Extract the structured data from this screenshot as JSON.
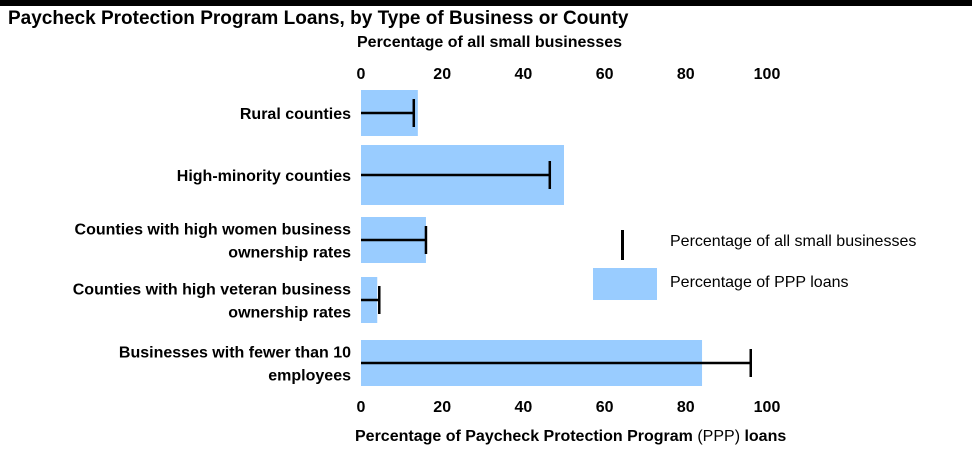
{
  "chart_data": {
    "type": "bar",
    "orientation": "horizontal",
    "title": "Paycheck Protection Program Loans, by Type of Business or County",
    "top_axis_label": "Percentage of all small businesses",
    "bottom_axis_label": {
      "part1": "Percentage of Paycheck Protection Program ",
      "part2": "(PPP)",
      "part3": " loans"
    },
    "categories": [
      [
        "Rural counties"
      ],
      [
        "High-minority counties"
      ],
      [
        "Counties with high women business",
        "ownership rates"
      ],
      [
        "Counties with high veteran business",
        "ownership rates"
      ],
      [
        "Businesses with fewer than 10",
        "employees"
      ]
    ],
    "series": [
      {
        "name": "Percentage of PPP loans",
        "values": [
          14,
          50,
          16,
          4,
          84
        ],
        "color": "#99ccff",
        "mark": "bar"
      },
      {
        "name": "Percentage of all small businesses",
        "values": [
          13,
          46.5,
          16,
          4.5,
          96
        ],
        "color": "#000000",
        "mark": "tick"
      }
    ],
    "xlim": [
      0,
      100
    ],
    "ticks": [
      0,
      20,
      40,
      60,
      80,
      100
    ],
    "grid": false,
    "legend_position": "right"
  }
}
